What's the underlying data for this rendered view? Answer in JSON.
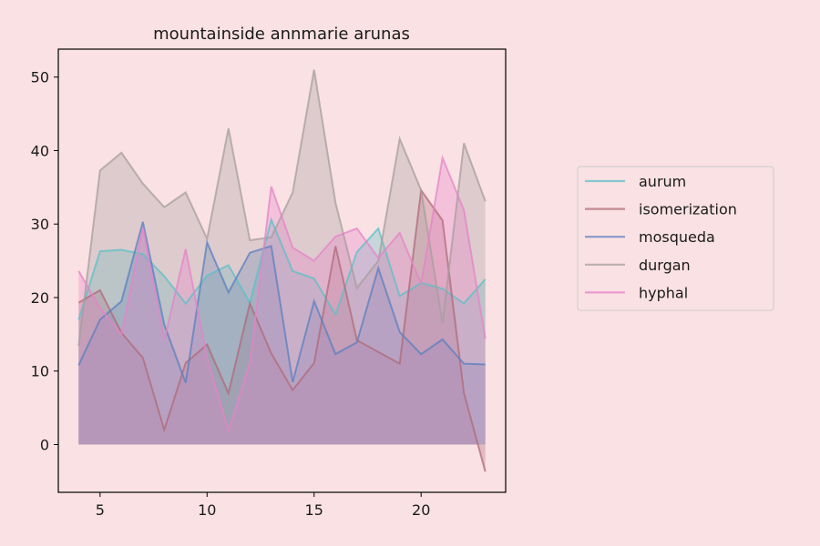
{
  "chart_data": {
    "type": "area",
    "title": "mountainside annmarie arunas",
    "xlabel": "",
    "ylabel": "",
    "xlim": [
      3.05,
      23.95
    ],
    "ylim": [
      -6.5,
      53.8
    ],
    "xticks": [
      5,
      10,
      15,
      20
    ],
    "yticks": [
      0,
      10,
      20,
      30,
      40,
      50
    ],
    "grid": false,
    "legend_position": "right",
    "x": [
      4,
      5,
      6,
      7,
      8,
      9,
      10,
      11,
      12,
      13,
      14,
      15,
      16,
      17,
      18,
      19,
      20,
      21,
      22,
      23
    ],
    "series": [
      {
        "name": "aurum",
        "color": "#5bc0c8",
        "values": [
          17.0,
          26.3,
          26.5,
          25.9,
          22.9,
          19.2,
          23.0,
          24.4,
          19.3,
          30.6,
          23.6,
          22.6,
          17.7,
          26.2,
          29.4,
          20.2,
          22.0,
          21.2,
          19.2,
          22.5
        ]
      },
      {
        "name": "isomerization",
        "color": "#b06a78",
        "values": [
          19.3,
          21.0,
          15.2,
          11.8,
          2.0,
          11.1,
          13.6,
          7.0,
          19.2,
          12.4,
          7.4,
          11.1,
          27.0,
          14.2,
          12.6,
          11.0,
          34.6,
          30.5,
          7.0,
          -3.7
        ]
      },
      {
        "name": "mosqueda",
        "color": "#5a7fc0",
        "values": [
          10.8,
          17.0,
          19.5,
          30.3,
          16.3,
          8.4,
          27.5,
          20.7,
          26.1,
          27.0,
          8.5,
          19.5,
          12.3,
          13.9,
          24.0,
          15.3,
          12.3,
          14.3,
          11.0,
          10.9
        ]
      },
      {
        "name": "durgan",
        "color": "#a69e9e",
        "values": [
          13.4,
          37.3,
          39.7,
          35.5,
          32.3,
          34.3,
          28.0,
          43.0,
          27.8,
          28.2,
          34.3,
          51.0,
          32.9,
          21.3,
          25.0,
          41.6,
          34.6,
          16.5,
          41.0,
          33.1
        ]
      },
      {
        "name": "hyphal",
        "color": "#e583c8",
        "values": [
          23.6,
          18.6,
          15.0,
          29.5,
          14.2,
          26.6,
          11.7,
          1.9,
          11.1,
          35.1,
          26.8,
          25.0,
          28.3,
          29.4,
          25.4,
          28.8,
          21.9,
          39.0,
          31.9,
          14.4
        ]
      }
    ]
  }
}
